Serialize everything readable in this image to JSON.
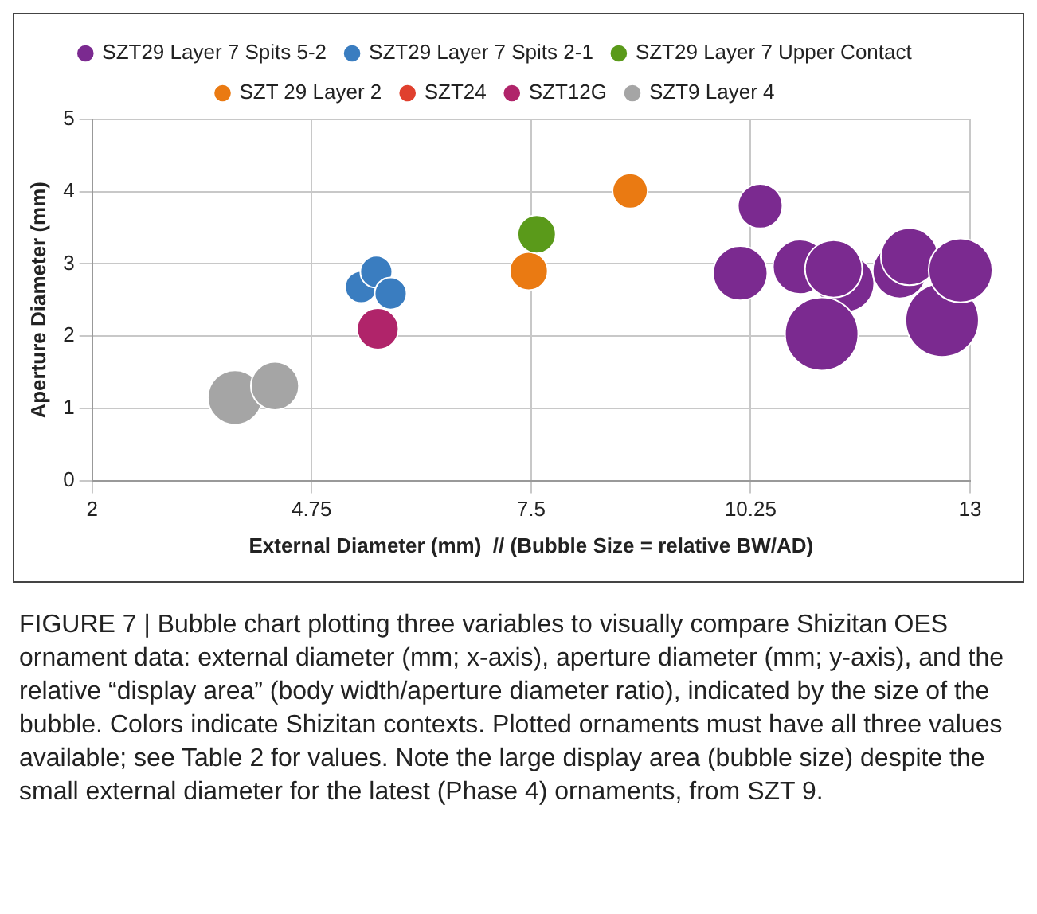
{
  "chart_data": {
    "type": "bubble",
    "xlabel": "External Diameter (mm)  // (Bubble Size = relative BW/AD)",
    "ylabel": "Aperture Diameter (mm)",
    "xlim": [
      2,
      13
    ],
    "xticks": [
      2,
      4.75,
      7.5,
      10.25,
      13
    ],
    "ylim": [
      0,
      5
    ],
    "yticks": [
      0,
      1,
      2,
      3,
      4,
      5
    ],
    "grid": true,
    "legend": "top",
    "series": [
      {
        "name": "SZT29 Layer 7 Spits 5-2",
        "color": "#7b2a90",
        "x": [
          10.37,
          10.12,
          10.87,
          11.44,
          11.14,
          11.29,
          12.12,
          12.24,
          12.65,
          12.88
        ],
        "values": [
          3.8,
          2.87,
          2.96,
          2.73,
          2.03,
          2.93,
          2.9,
          3.1,
          2.22,
          2.91
        ],
        "sizes": [
          0.37,
          0.55,
          0.55,
          0.61,
          1,
          0.61,
          0.55,
          0.61,
          1,
          0.76
        ]
      },
      {
        "name": "SZT29 Layer 7 Spits 2-1",
        "color": "#3a7dc0",
        "x": [
          5.37,
          5.56,
          5.74
        ],
        "values": [
          2.68,
          2.89,
          2.59
        ],
        "sizes": [
          0.19,
          0.19,
          0.19
        ]
      },
      {
        "name": "SZT29 Layer 7 Upper Contact",
        "color": "#5a9a1a",
        "x": [
          7.57
        ],
        "values": [
          3.41
        ],
        "sizes": [
          0.27
        ]
      },
      {
        "name": "SZT 29 Layer 2",
        "color": "#ea7a12",
        "x": [
          7.47,
          8.74
        ],
        "values": [
          2.9,
          4.01
        ],
        "sizes": [
          0.27,
          0.23
        ]
      },
      {
        "name": "SZT24",
        "color": "#e0402e"
      },
      {
        "name": "SZT12G",
        "color": "#b0246a",
        "x": [
          5.58
        ],
        "values": [
          2.1
        ],
        "sizes": [
          0.32
        ]
      },
      {
        "name": "SZT9 Layer 4",
        "color": "#a5a5a5",
        "x": [
          3.79,
          4.29
        ],
        "values": [
          1.15,
          1.31
        ],
        "sizes": [
          0.55,
          0.43
        ]
      }
    ],
    "annotations": [
      "FIGURE 7 | Bubble chart plotting three variables to visually compare Shizitan OES ornament data: external diameter (mm; x-axis), aperture diameter (mm; y-axis), and the relative “display area” (body width/aperture diameter ratio), indicated by the size of the bubble. Colors indicate Shizitan contexts. Plotted ornaments must have all three values available; see Table 2 for values. Note the large display area (bubble size) despite the small external diameter for the latest (Phase 4) ornaments, from SZT 9."
    ]
  }
}
